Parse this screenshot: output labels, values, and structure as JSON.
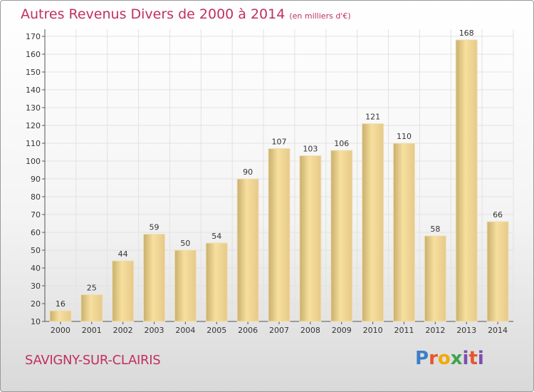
{
  "title": "Autres Revenus Divers de 2000 à 2014",
  "subtitle": "(en milliers d'€)",
  "location": "SAVIGNY-SUR-CLAIRIS",
  "brand": {
    "letters": [
      "P",
      "r",
      "o",
      "x",
      "i",
      "t",
      "i"
    ]
  },
  "colors": {
    "bar_light": "#f6dc98",
    "bar_dark": "#c7ad6b",
    "title": "#c0305e"
  },
  "chart_data": {
    "type": "bar",
    "title": "Autres Revenus Divers de 2000 à 2014",
    "subtitle": "(en milliers d'€)",
    "categories": [
      "2000",
      "2001",
      "2002",
      "2003",
      "2004",
      "2005",
      "2006",
      "2007",
      "2008",
      "2009",
      "2010",
      "2011",
      "2012",
      "2013",
      "2014"
    ],
    "values": [
      16,
      25,
      44,
      59,
      50,
      54,
      90,
      107,
      103,
      106,
      121,
      110,
      58,
      168,
      66
    ],
    "ylim": [
      10,
      170
    ],
    "yticks": [
      10,
      20,
      30,
      40,
      50,
      60,
      70,
      80,
      90,
      100,
      110,
      120,
      130,
      140,
      150,
      160,
      170
    ],
    "grid": true,
    "legend": "none"
  }
}
